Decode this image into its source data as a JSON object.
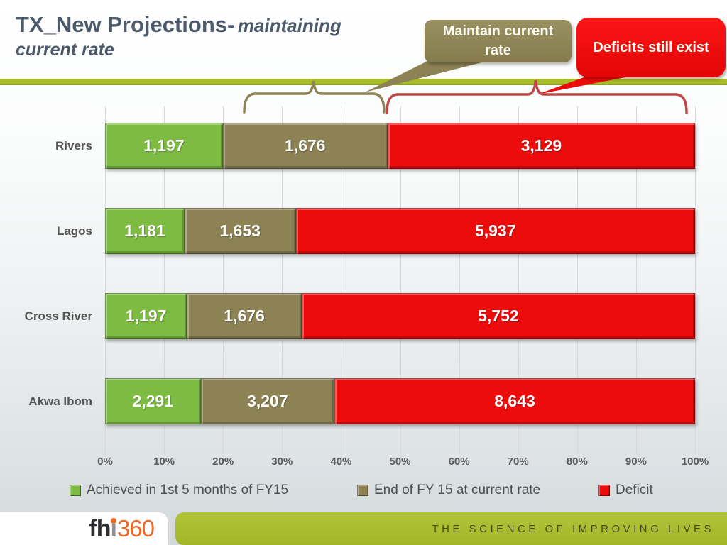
{
  "slide": {
    "title_main": "TX_New Projections-",
    "title_italic": "maintaining",
    "title_line2": "current rate"
  },
  "callouts": {
    "maintain": {
      "text": "Maintain current rate"
    },
    "deficit": {
      "text": "Deficits still exist"
    }
  },
  "colors": {
    "green": "#7DBB42",
    "olive": "#8C8254",
    "red": "#ED0C0C",
    "brace_olive": "#8C8254",
    "brace_red": "#BE4845",
    "accent_line": "#A7BC28",
    "footer_green": "#A9BD2F",
    "logo_orange": "#F26722"
  },
  "chart_data": {
    "type": "bar",
    "subtype": "100%-stacked-horizontal",
    "categories": [
      "Rivers",
      "Lagos",
      "Cross River",
      "Akwa Ibom"
    ],
    "series": [
      {
        "name": "Achieved in 1st 5 months of FY15",
        "color": "#7DBB42",
        "values": [
          1197,
          1181,
          1197,
          2291
        ]
      },
      {
        "name": "End of FY 15 at current rate",
        "color": "#8C8254",
        "values": [
          1676,
          1653,
          1676,
          3207
        ]
      },
      {
        "name": "Deficit",
        "color": "#ED0C0C",
        "values": [
          3129,
          5937,
          5752,
          8643
        ]
      }
    ],
    "x_ticks": [
      "0%",
      "10%",
      "20%",
      "30%",
      "40%",
      "50%",
      "60%",
      "70%",
      "80%",
      "90%",
      "100%"
    ],
    "xlim": [
      0,
      100
    ],
    "grid": "vertical",
    "legend_position": "bottom"
  },
  "footer": {
    "logo": {
      "prefix": "fh",
      "i": "i",
      "number": "360"
    },
    "tagline": "THE SCIENCE OF IMPROVING LIVES"
  }
}
